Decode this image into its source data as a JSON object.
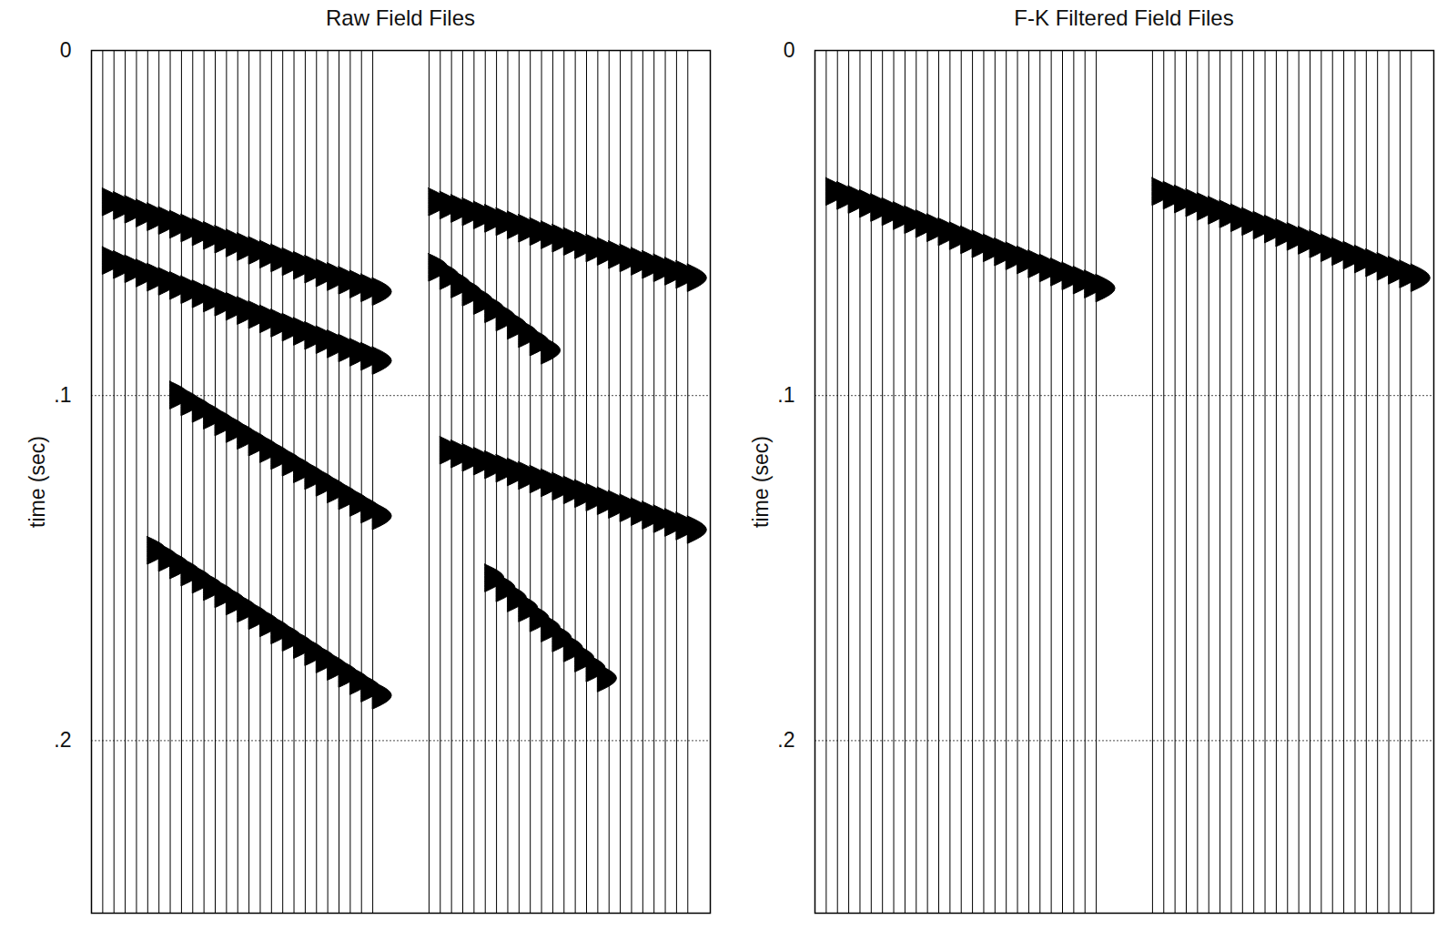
{
  "chart_data": [
    {
      "type": "wiggle",
      "title": "Raw Field Files",
      "ylabel": "time (sec)",
      "xlim": [
        0,
        55
      ],
      "ylim": [
        0,
        0.25
      ],
      "yticks": [
        0,
        {
          "value": 0.1,
          "label": ".1"
        },
        {
          "value": 0.2,
          "label": ".2"
        }
      ],
      "grid": true,
      "tick_labels": "y",
      "color": "#000000",
      "files": [
        {
          "first_trace": 1,
          "last_trace": 25,
          "events": [
            {
              "x": [
                1,
                25
              ],
              "y": [
                0.044,
                0.07
              ]
            },
            {
              "x": [
                1,
                25
              ],
              "y": [
                0.061,
                0.09
              ]
            },
            {
              "x": [
                7,
                25
              ],
              "y": [
                0.1,
                0.135
              ]
            },
            {
              "x": [
                5,
                25
              ],
              "y": [
                0.145,
                0.187
              ]
            }
          ]
        },
        {
          "first_trace": 30,
          "last_trace": 53,
          "events": [
            {
              "x": [
                30,
                53
              ],
              "y": [
                0.044,
                0.066
              ]
            },
            {
              "x": [
                30,
                40
              ],
              "y": [
                0.063,
                0.087
              ]
            },
            {
              "x": [
                31,
                53
              ],
              "y": [
                0.116,
                0.139
              ]
            },
            {
              "x": [
                35,
                45
              ],
              "y": [
                0.153,
                0.182
              ]
            }
          ]
        }
      ]
    },
    {
      "type": "wiggle",
      "title": "F-K Filtered Field Files",
      "ylabel": "time (sec)",
      "xlim": [
        0,
        55
      ],
      "ylim": [
        0,
        0.25
      ],
      "yticks": [
        0,
        {
          "value": 0.1,
          "label": ".1"
        },
        {
          "value": 0.2,
          "label": ".2"
        }
      ],
      "grid": true,
      "tick_labels": "y",
      "color": "#000000",
      "files": [
        {
          "first_trace": 1,
          "last_trace": 25,
          "events": [
            {
              "x": [
                1,
                25
              ],
              "y": [
                0.041,
                0.069
              ]
            }
          ]
        },
        {
          "first_trace": 30,
          "last_trace": 53,
          "events": [
            {
              "x": [
                30,
                53
              ],
              "y": [
                0.041,
                0.066
              ]
            }
          ]
        }
      ]
    }
  ]
}
